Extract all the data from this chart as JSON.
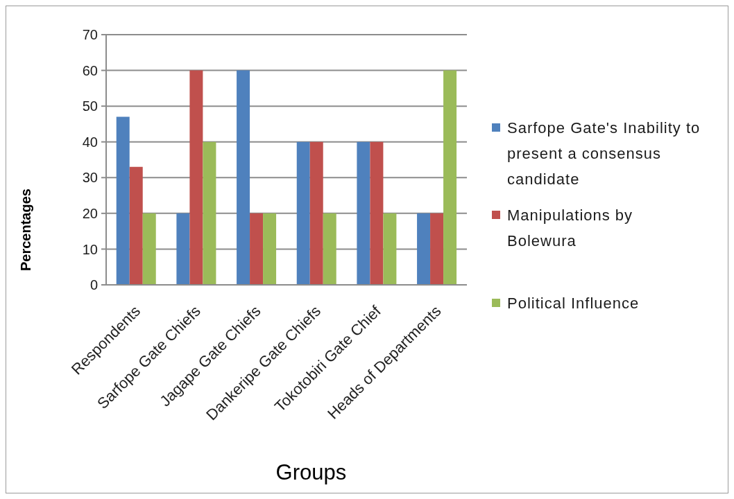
{
  "chart_data": {
    "type": "bar",
    "xlabel": "Groups",
    "ylabel": "Percentages",
    "categories": [
      "Respondents",
      "Sarfope Gate Chiefs",
      "Jagape Gate Chiefs",
      "Dankeripe Gate Chiefs",
      "Tokotobiri Gate Chief",
      "Heads of Departments"
    ],
    "series": [
      {
        "name": "Sarfope Gate's Inability to present a consensus candidate",
        "color": "#4f81bd",
        "values": [
          47,
          20,
          60,
          40,
          40,
          20
        ]
      },
      {
        "name": "Manipulations by Bolewura",
        "color": "#c0504d",
        "values": [
          33,
          60,
          20,
          40,
          40,
          20
        ]
      },
      {
        "name": "Political Influence",
        "color": "#9bbb59",
        "values": [
          20,
          40,
          20,
          20,
          20,
          60
        ]
      }
    ],
    "ylim": [
      0,
      70
    ],
    "yticks": [
      0,
      10,
      20,
      30,
      40,
      50,
      60,
      70
    ],
    "grid": "y",
    "legend": "right"
  }
}
